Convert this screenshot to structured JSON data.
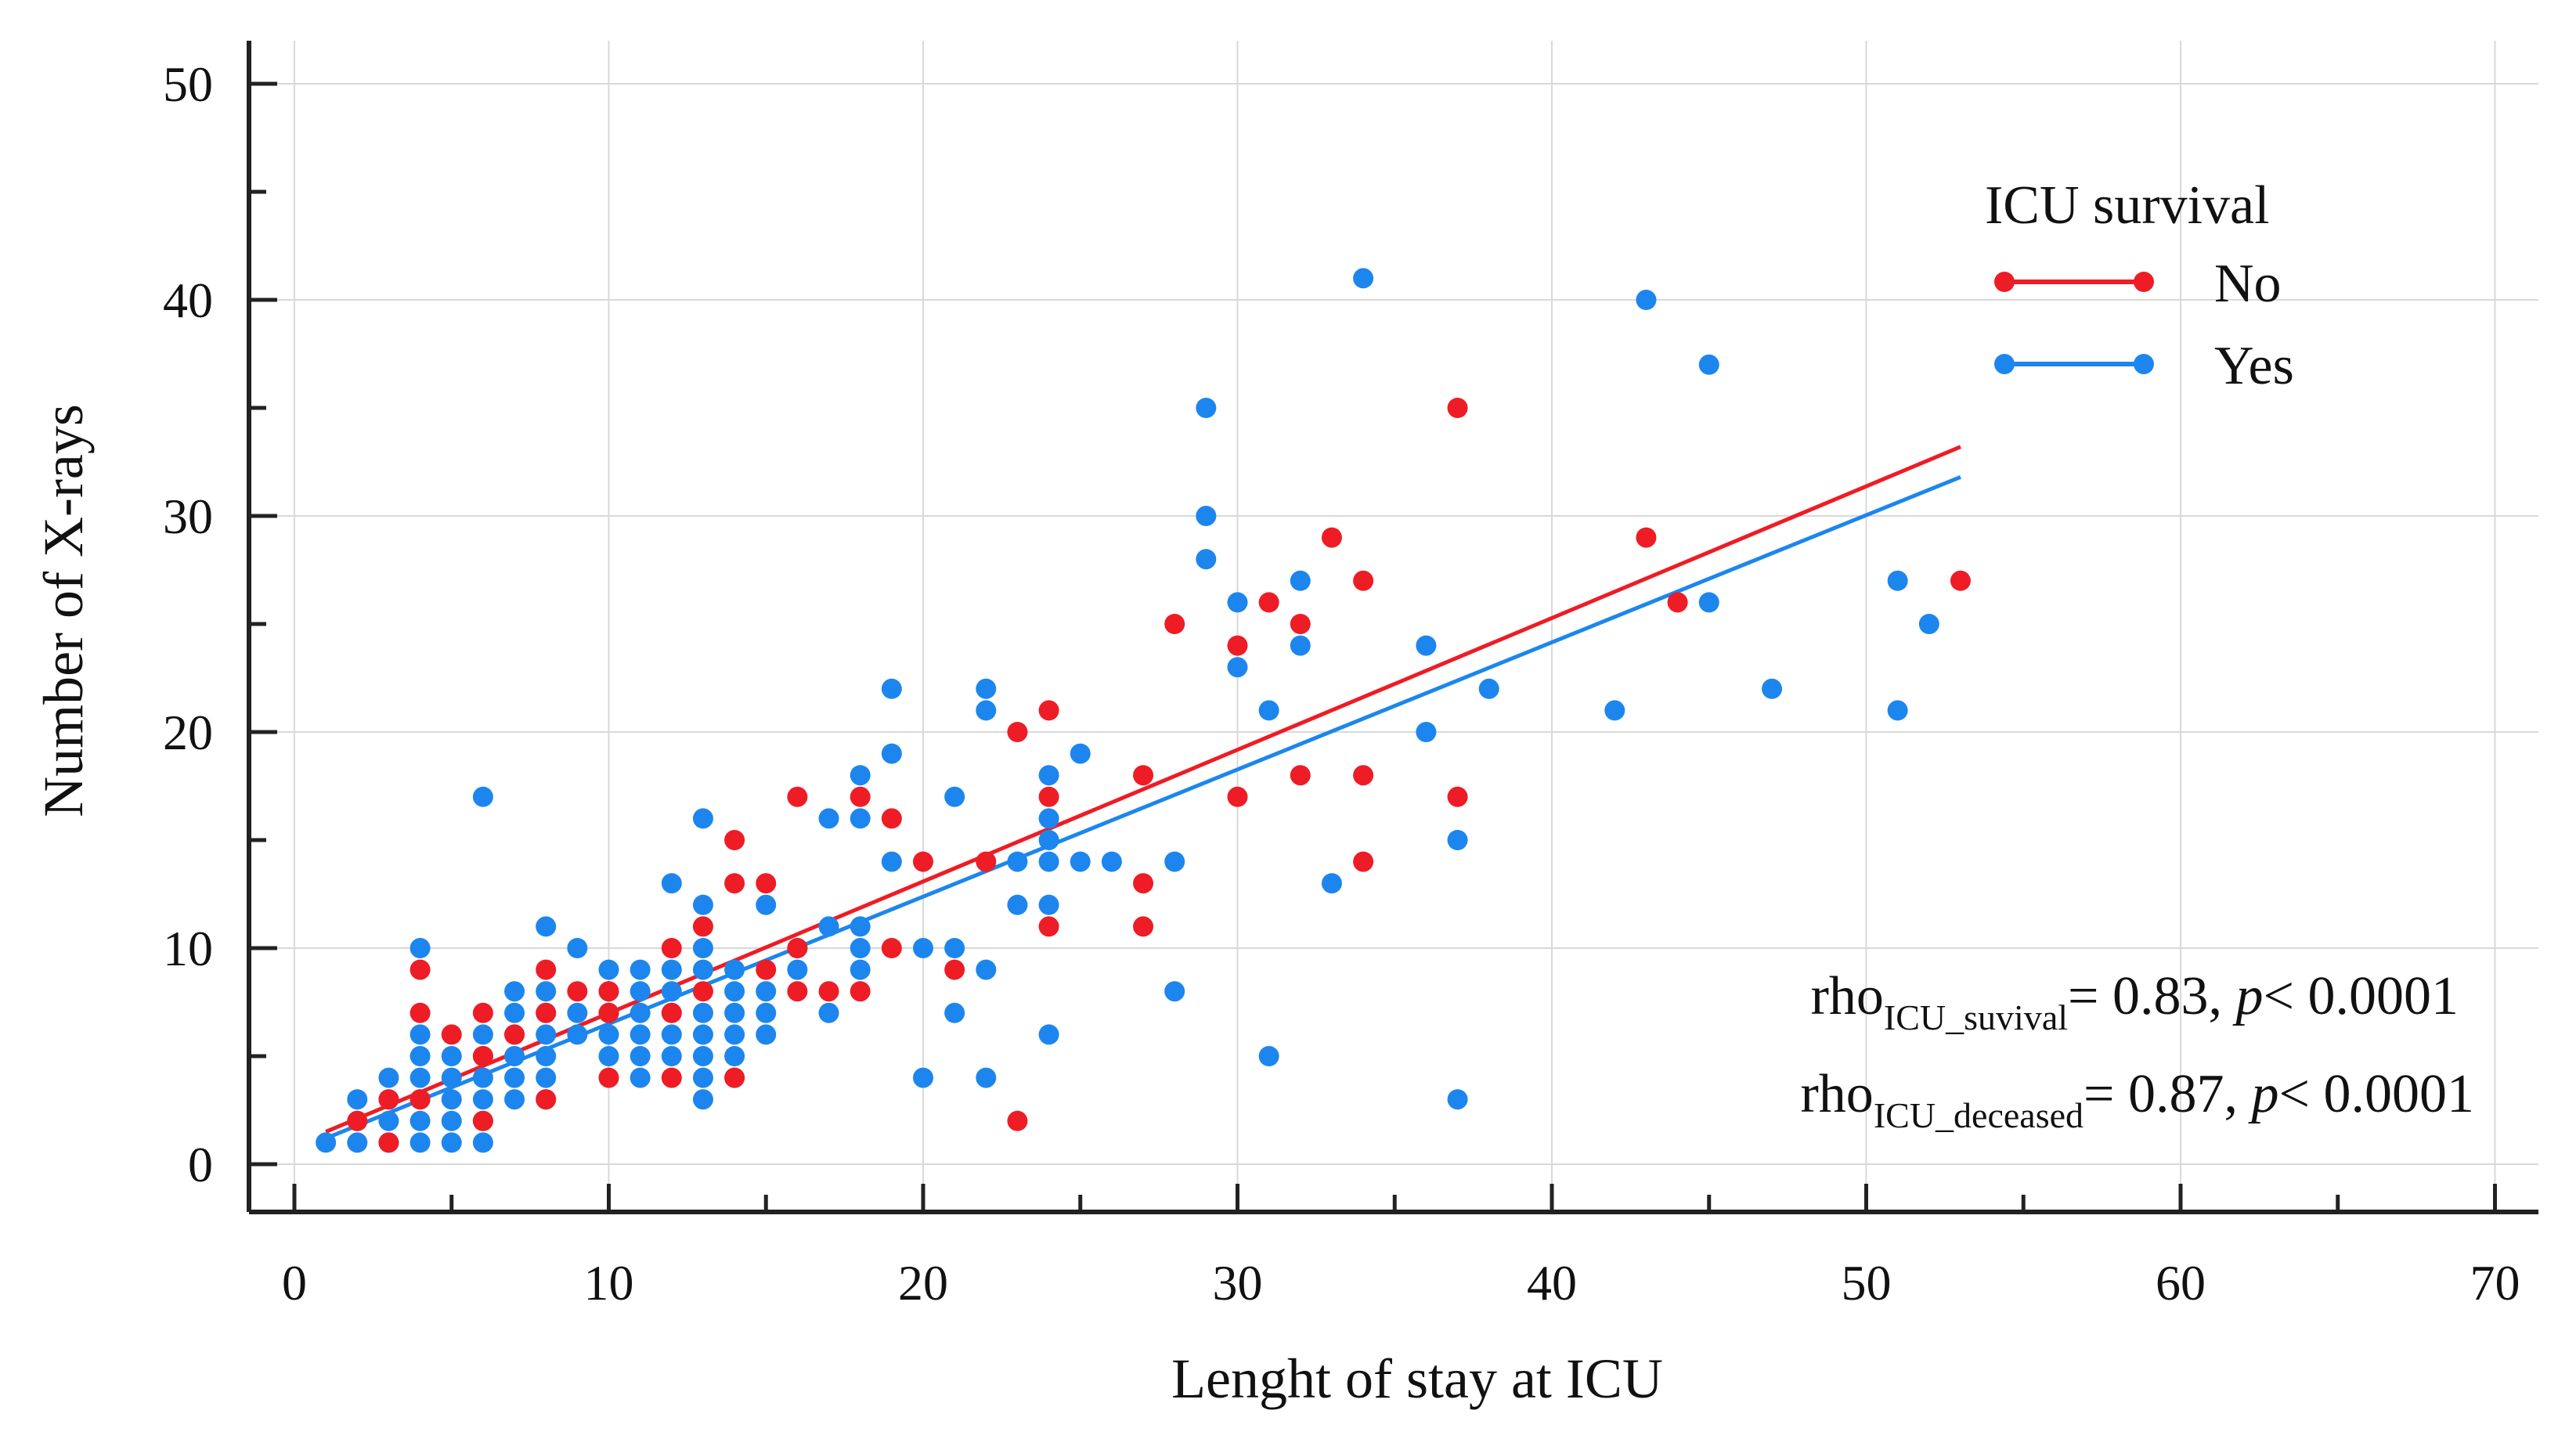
{
  "chart_data": {
    "type": "scatter",
    "title": "",
    "xlabel": "Lenght of stay at ICU",
    "ylabel": "Number of X-rays",
    "xlim": [
      0,
      70
    ],
    "ylim": [
      0,
      50
    ],
    "x_ticks": [
      0,
      10,
      20,
      30,
      40,
      50,
      60,
      70
    ],
    "y_ticks": [
      0,
      10,
      20,
      30,
      40,
      50
    ],
    "x_tick_labels": [
      "0",
      "10",
      "20",
      "30",
      "40",
      "50",
      "60",
      "70"
    ],
    "y_tick_labels": [
      "0",
      "10",
      "20",
      "30",
      "40",
      "50"
    ],
    "grid": true,
    "legend": {
      "title": "ICU survival",
      "position": "top-right",
      "entries": [
        {
          "label": "No",
          "color": "#ee1c25"
        },
        {
          "label": "Yes",
          "color": "#1c86ee"
        }
      ]
    },
    "annotations": [
      {
        "prefix": "rho",
        "subscript": "ICU_suvival",
        "middle": "= 0.83, ",
        "italic": "p",
        "suffix": "< 0.0001"
      },
      {
        "prefix": "rho",
        "subscript": "ICU_deceased",
        "middle": "=  0.87, ",
        "italic": "p",
        "suffix": "< 0.0001"
      }
    ],
    "series": [
      {
        "name": "Yes",
        "color": "#1c86ee",
        "fit_line": {
          "x": [
            1,
            53
          ],
          "y": [
            1.2,
            31.8
          ]
        },
        "points": [
          [
            1,
            1
          ],
          [
            2,
            1
          ],
          [
            2,
            2
          ],
          [
            2,
            3
          ],
          [
            3,
            1
          ],
          [
            3,
            2
          ],
          [
            3,
            3
          ],
          [
            3,
            4
          ],
          [
            4,
            1
          ],
          [
            4,
            2
          ],
          [
            4,
            3
          ],
          [
            4,
            4
          ],
          [
            4,
            5
          ],
          [
            4,
            6
          ],
          [
            4,
            10
          ],
          [
            5,
            1
          ],
          [
            5,
            2
          ],
          [
            5,
            3
          ],
          [
            5,
            4
          ],
          [
            5,
            5
          ],
          [
            6,
            1
          ],
          [
            6,
            2
          ],
          [
            6,
            3
          ],
          [
            6,
            4
          ],
          [
            6,
            5
          ],
          [
            6,
            6
          ],
          [
            6,
            17
          ],
          [
            7,
            3
          ],
          [
            7,
            4
          ],
          [
            7,
            5
          ],
          [
            7,
            6
          ],
          [
            7,
            7
          ],
          [
            7,
            8
          ],
          [
            8,
            3
          ],
          [
            8,
            4
          ],
          [
            8,
            5
          ],
          [
            8,
            6
          ],
          [
            8,
            7
          ],
          [
            8,
            8
          ],
          [
            8,
            11
          ],
          [
            9,
            6
          ],
          [
            9,
            7
          ],
          [
            9,
            10
          ],
          [
            10,
            5
          ],
          [
            10,
            6
          ],
          [
            10,
            7
          ],
          [
            10,
            8
          ],
          [
            10,
            9
          ],
          [
            11,
            4
          ],
          [
            11,
            5
          ],
          [
            11,
            6
          ],
          [
            11,
            7
          ],
          [
            11,
            8
          ],
          [
            11,
            9
          ],
          [
            12,
            5
          ],
          [
            12,
            6
          ],
          [
            12,
            7
          ],
          [
            12,
            8
          ],
          [
            12,
            9
          ],
          [
            12,
            13
          ],
          [
            13,
            3
          ],
          [
            13,
            4
          ],
          [
            13,
            5
          ],
          [
            13,
            6
          ],
          [
            13,
            7
          ],
          [
            13,
            9
          ],
          [
            13,
            10
          ],
          [
            13,
            12
          ],
          [
            13,
            16
          ],
          [
            14,
            4
          ],
          [
            14,
            5
          ],
          [
            14,
            6
          ],
          [
            14,
            7
          ],
          [
            14,
            8
          ],
          [
            14,
            9
          ],
          [
            15,
            6
          ],
          [
            15,
            7
          ],
          [
            15,
            8
          ],
          [
            15,
            12
          ],
          [
            16,
            9
          ],
          [
            16,
            10
          ],
          [
            17,
            7
          ],
          [
            17,
            11
          ],
          [
            17,
            16
          ],
          [
            18,
            9
          ],
          [
            18,
            10
          ],
          [
            18,
            11
          ],
          [
            18,
            16
          ],
          [
            18,
            18
          ],
          [
            19,
            14
          ],
          [
            19,
            19
          ],
          [
            19,
            22
          ],
          [
            20,
            4
          ],
          [
            20,
            10
          ],
          [
            21,
            7
          ],
          [
            21,
            10
          ],
          [
            21,
            17
          ],
          [
            22,
            4
          ],
          [
            22,
            9
          ],
          [
            22,
            21
          ],
          [
            22,
            22
          ],
          [
            23,
            12
          ],
          [
            23,
            14
          ],
          [
            24,
            6
          ],
          [
            24,
            12
          ],
          [
            24,
            14
          ],
          [
            24,
            15
          ],
          [
            24,
            16
          ],
          [
            24,
            18
          ],
          [
            25,
            14
          ],
          [
            25,
            19
          ],
          [
            26,
            14
          ],
          [
            28,
            8
          ],
          [
            28,
            14
          ],
          [
            29,
            28
          ],
          [
            29,
            30
          ],
          [
            29,
            35
          ],
          [
            30,
            23
          ],
          [
            30,
            26
          ],
          [
            31,
            5
          ],
          [
            31,
            21
          ],
          [
            32,
            24
          ],
          [
            32,
            27
          ],
          [
            33,
            13
          ],
          [
            34,
            41
          ],
          [
            36,
            20
          ],
          [
            36,
            24
          ],
          [
            37,
            3
          ],
          [
            37,
            15
          ],
          [
            38,
            22
          ],
          [
            42,
            21
          ],
          [
            43,
            40
          ],
          [
            45,
            26
          ],
          [
            45,
            37
          ],
          [
            47,
            22
          ],
          [
            51,
            21
          ],
          [
            51,
            27
          ],
          [
            52,
            25
          ]
        ]
      },
      {
        "name": "No",
        "color": "#ee1c25",
        "fit_line": {
          "x": [
            1,
            53
          ],
          "y": [
            1.5,
            33.2
          ]
        },
        "points": [
          [
            2,
            2
          ],
          [
            3,
            1
          ],
          [
            3,
            3
          ],
          [
            4,
            3
          ],
          [
            4,
            7
          ],
          [
            4,
            9
          ],
          [
            5,
            6
          ],
          [
            6,
            2
          ],
          [
            6,
            5
          ],
          [
            6,
            7
          ],
          [
            7,
            6
          ],
          [
            8,
            3
          ],
          [
            8,
            7
          ],
          [
            8,
            9
          ],
          [
            9,
            8
          ],
          [
            10,
            4
          ],
          [
            10,
            7
          ],
          [
            10,
            8
          ],
          [
            12,
            4
          ],
          [
            12,
            7
          ],
          [
            12,
            10
          ],
          [
            13,
            8
          ],
          [
            13,
            11
          ],
          [
            14,
            4
          ],
          [
            14,
            13
          ],
          [
            14,
            15
          ],
          [
            15,
            9
          ],
          [
            15,
            13
          ],
          [
            16,
            8
          ],
          [
            16,
            10
          ],
          [
            16,
            17
          ],
          [
            17,
            8
          ],
          [
            18,
            8
          ],
          [
            18,
            17
          ],
          [
            19,
            10
          ],
          [
            19,
            16
          ],
          [
            20,
            14
          ],
          [
            21,
            9
          ],
          [
            22,
            14
          ],
          [
            23,
            2
          ],
          [
            23,
            20
          ],
          [
            24,
            11
          ],
          [
            24,
            17
          ],
          [
            24,
            21
          ],
          [
            27,
            11
          ],
          [
            27,
            13
          ],
          [
            27,
            18
          ],
          [
            28,
            25
          ],
          [
            30,
            17
          ],
          [
            30,
            24
          ],
          [
            31,
            26
          ],
          [
            32,
            18
          ],
          [
            32,
            25
          ],
          [
            33,
            29
          ],
          [
            34,
            14
          ],
          [
            34,
            18
          ],
          [
            34,
            27
          ],
          [
            37,
            17
          ],
          [
            37,
            35
          ],
          [
            43,
            29
          ],
          [
            44,
            26
          ],
          [
            53,
            27
          ]
        ]
      }
    ]
  }
}
